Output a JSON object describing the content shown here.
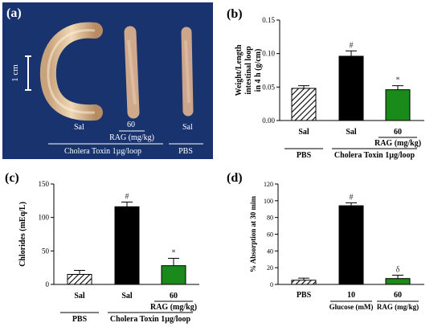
{
  "figure": {
    "panel_a": {
      "letter": "(a)",
      "scale_bar_label": "1 cm",
      "loop_labels": [
        "Sal",
        "60",
        "Sal"
      ],
      "rag_label": "RAG (mg/kg)",
      "group_labels": [
        "Cholera Toxin 1µg/loop",
        "PBS"
      ]
    },
    "panel_b": {
      "letter": "(b)"
    },
    "panel_c": {
      "letter": "(c)"
    },
    "panel_d": {
      "letter": "(d)"
    }
  },
  "chart_data": [
    {
      "id": "b",
      "type": "bar",
      "ylabel_lines": [
        "Weight/Length",
        "intestinal loop",
        "in 4 h (g/cm)"
      ],
      "ylim": [
        0,
        0.15
      ],
      "yticks": [
        "0.00",
        "0.05",
        "0.10",
        "0.15"
      ],
      "ytick_values": [
        0,
        0.05,
        0.1,
        0.15
      ],
      "categories": [
        "Sal",
        "Sal",
        "60"
      ],
      "values": [
        0.048,
        0.096,
        0.046
      ],
      "errors": [
        0.004,
        0.008,
        0.006
      ],
      "bar_colors": [
        "hatch",
        "#000000",
        "#1a8a1a"
      ],
      "annotations": [
        "",
        "#",
        "*"
      ],
      "group_labels": [
        {
          "text": "PBS",
          "bars": [
            0
          ]
        },
        {
          "text": "Cholera Toxin 1µg/loop",
          "bars": [
            1,
            2
          ]
        }
      ],
      "sub_label": {
        "text": "RAG (mg/kg)",
        "bars": [
          2
        ]
      }
    },
    {
      "id": "c",
      "type": "bar",
      "ylabel_lines": [
        "Chlorides (mEq/L)"
      ],
      "ylim": [
        0,
        150
      ],
      "yticks": [
        "0",
        "50",
        "100",
        "150"
      ],
      "ytick_values": [
        0,
        50,
        100,
        150
      ],
      "categories": [
        "Sal",
        "Sal",
        "60"
      ],
      "values": [
        15,
        116,
        28
      ],
      "errors": [
        6,
        7,
        11
      ],
      "bar_colors": [
        "hatch",
        "#000000",
        "#1a8a1a"
      ],
      "annotations": [
        "",
        "#",
        "*"
      ],
      "group_labels": [
        {
          "text": "PBS",
          "bars": [
            0
          ]
        },
        {
          "text": "Cholera Toxin 1µg/loop",
          "bars": [
            1,
            2
          ]
        }
      ],
      "sub_label": {
        "text": "RAG (mg/kg)",
        "bars": [
          2
        ]
      }
    },
    {
      "id": "d",
      "type": "bar",
      "ylabel_lines": [
        "% Absorption at 30 mim"
      ],
      "ylim": [
        0,
        120
      ],
      "yticks": [
        "0",
        "20",
        "40",
        "60",
        "80",
        "100",
        "120"
      ],
      "ytick_values": [
        0,
        20,
        40,
        60,
        80,
        100,
        120
      ],
      "categories": [
        "PBS",
        "10",
        "60"
      ],
      "values": [
        5,
        94,
        7
      ],
      "errors": [
        2.5,
        3.5,
        4
      ],
      "bar_colors": [
        "hatch",
        "#000000",
        "#1a8a1a"
      ],
      "annotations": [
        "",
        "#",
        "δ"
      ],
      "bottom_labels": [
        {
          "text": "Glucose (mM)",
          "bars": [
            1
          ]
        },
        {
          "text": "RAG (mg/kg)",
          "bars": [
            2
          ]
        }
      ]
    }
  ]
}
